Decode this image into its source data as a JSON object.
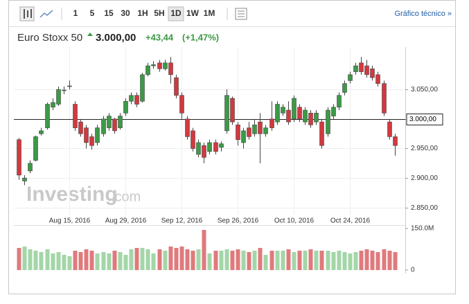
{
  "toolbar": {
    "intervals": [
      "1",
      "5",
      "15",
      "30",
      "1H",
      "5H",
      "1D",
      "1W",
      "1M"
    ],
    "link": "Gráfico técnico »"
  },
  "header": {
    "name": "Euro Stoxx 50",
    "price": "3.000,00",
    "change": "+43,44",
    "change_pct": "(+1,47%)"
  },
  "watermark": {
    "brand": "Investing",
    "suffix": ".com"
  },
  "chart_data": {
    "type": "candlestick",
    "x": [
      "2016-08-02",
      "2016-08-03",
      "2016-08-04",
      "2016-08-05",
      "2016-08-08",
      "2016-08-09",
      "2016-08-10",
      "2016-08-11",
      "2016-08-12",
      "2016-08-15",
      "2016-08-16",
      "2016-08-17",
      "2016-08-18",
      "2016-08-19",
      "2016-08-22",
      "2016-08-23",
      "2016-08-24",
      "2016-08-25",
      "2016-08-26",
      "2016-08-29",
      "2016-08-30",
      "2016-08-31",
      "2016-09-01",
      "2016-09-02",
      "2016-09-05",
      "2016-09-06",
      "2016-09-07",
      "2016-09-08",
      "2016-09-09",
      "2016-09-12",
      "2016-09-13",
      "2016-09-14",
      "2016-09-15",
      "2016-09-16",
      "2016-09-19",
      "2016-09-20",
      "2016-09-21",
      "2016-09-22",
      "2016-09-23",
      "2016-09-26",
      "2016-09-27",
      "2016-09-28",
      "2016-09-29",
      "2016-09-30",
      "2016-10-03",
      "2016-10-04",
      "2016-10-05",
      "2016-10-06",
      "2016-10-07",
      "2016-10-10",
      "2016-10-11",
      "2016-10-12",
      "2016-10-13",
      "2016-10-14",
      "2016-10-17",
      "2016-10-18",
      "2016-10-19",
      "2016-10-20",
      "2016-10-21",
      "2016-10-24",
      "2016-10-25",
      "2016-10-26",
      "2016-10-27",
      "2016-10-28",
      "2016-10-31",
      "2016-11-01",
      "2016-11-02",
      "2016-11-03"
    ],
    "open": [
      2965,
      2895,
      2912,
      2930,
      2975,
      2985,
      3020,
      3025,
      3048,
      3055,
      3025,
      2995,
      2985,
      2970,
      2960,
      2975,
      2985,
      3000,
      2985,
      3010,
      3030,
      3040,
      3030,
      3075,
      3090,
      3095,
      3085,
      3095,
      3070,
      3040,
      3000,
      2980,
      2940,
      2955,
      2945,
      2960,
      2952,
      2980,
      3035,
      2990,
      2960,
      2985,
      2975,
      2995,
      2975,
      3000,
      2995,
      3010,
      3015,
      3000,
      3020,
      2995,
      3010,
      2995,
      2995,
      2975,
      3005,
      3020,
      3045,
      3065,
      3080,
      3095,
      3090,
      3085,
      3075,
      3060,
      2995,
      2970
    ],
    "high": [
      2968,
      2905,
      2930,
      2972,
      2985,
      3028,
      3035,
      3055,
      3055,
      3065,
      3030,
      3000,
      2990,
      2975,
      2990,
      3005,
      3010,
      3002,
      3010,
      3035,
      3045,
      3045,
      3078,
      3095,
      3098,
      3100,
      3100,
      3105,
      3075,
      3045,
      3005,
      2985,
      2965,
      2960,
      2965,
      2965,
      2962,
      3050,
      3038,
      2995,
      2985,
      2995,
      3000,
      3010,
      2990,
      3030,
      3030,
      3025,
      3030,
      3040,
      3025,
      3020,
      3015,
      3015,
      3000,
      3020,
      3025,
      3045,
      3065,
      3080,
      3095,
      3105,
      3100,
      3090,
      3080,
      3065,
      3000,
      2975
    ],
    "low": [
      2897,
      2888,
      2908,
      2928,
      2972,
      2982,
      3015,
      3022,
      3042,
      3050,
      2980,
      2970,
      2950,
      2948,
      2955,
      2970,
      2980,
      2975,
      2982,
      3005,
      3025,
      3020,
      3028,
      3072,
      3085,
      3080,
      3082,
      3060,
      3035,
      3000,
      2965,
      2945,
      2935,
      2925,
      2940,
      2940,
      2945,
      2975,
      2990,
      2955,
      2950,
      2965,
      2970,
      2925,
      2970,
      2980,
      2990,
      3005,
      2990,
      2995,
      2995,
      2990,
      2985,
      2990,
      2950,
      2970,
      3000,
      3015,
      3040,
      3060,
      3075,
      3075,
      3070,
      3065,
      3055,
      3005,
      2965,
      2938
    ],
    "close": [
      2905,
      2900,
      2925,
      2970,
      2980,
      3025,
      3028,
      3050,
      3049,
      3056,
      2985,
      2975,
      2960,
      2955,
      2985,
      3000,
      3005,
      2980,
      3005,
      3030,
      3040,
      3025,
      3075,
      3090,
      3092,
      3085,
      3095,
      3075,
      3040,
      3010,
      2970,
      2950,
      2960,
      2935,
      2960,
      2945,
      2958,
      3040,
      2995,
      2965,
      2980,
      2970,
      2990,
      2975,
      2985,
      2985,
      3025,
      3020,
      2995,
      3035,
      3000,
      3015,
      2990,
      3010,
      2955,
      3015,
      3020,
      3040,
      3060,
      3075,
      3090,
      3080,
      3075,
      3070,
      3060,
      3010,
      2970,
      2955
    ],
    "up_color": "#3c9a46",
    "down_color": "#d2393f",
    "volume_up_color": "#a3d6a8",
    "volume_down_color": "#df7a7c",
    "ylim": [
      2838,
      3110
    ],
    "yticks": [
      {
        "value": 2850,
        "label": "2.850,00"
      },
      {
        "value": 2900,
        "label": "2.900,00"
      },
      {
        "value": 2950,
        "label": "2.950,00"
      },
      {
        "value": 3000,
        "label": "3.000,00"
      },
      {
        "value": 3050,
        "label": "3.050,00"
      }
    ],
    "xticks": [
      {
        "value": "2016-08-15",
        "label": "Aug 15, 2016"
      },
      {
        "value": "2016-08-29",
        "label": "Aug 29, 2016"
      },
      {
        "value": "2016-09-12",
        "label": "Sep 12, 2016"
      },
      {
        "value": "2016-09-26",
        "label": "Sep 26, 2016"
      },
      {
        "value": "2016-10-10",
        "label": "Oct 10, 2016"
      },
      {
        "value": "2016-10-24",
        "label": "Oct 24, 2016"
      }
    ],
    "price_line": {
      "value": 3000,
      "label": "3.000,00"
    },
    "grid": true,
    "volume": {
      "values": [
        80,
        85,
        75,
        70,
        65,
        75,
        60,
        65,
        55,
        50,
        70,
        65,
        75,
        70,
        60,
        65,
        60,
        70,
        65,
        55,
        75,
        80,
        80,
        75,
        60,
        75,
        70,
        85,
        80,
        85,
        75,
        70,
        75,
        145,
        60,
        70,
        70,
        75,
        70,
        75,
        70,
        65,
        70,
        80,
        55,
        70,
        70,
        70,
        75,
        65,
        70,
        70,
        75,
        70,
        70,
        70,
        65,
        70,
        65,
        60,
        65,
        70,
        75,
        70,
        65,
        75,
        70,
        65
      ],
      "ylim": [
        0,
        150
      ],
      "yticks": [
        0,
        {
          "value": 150,
          "label": "150.0M"
        }
      ]
    }
  }
}
